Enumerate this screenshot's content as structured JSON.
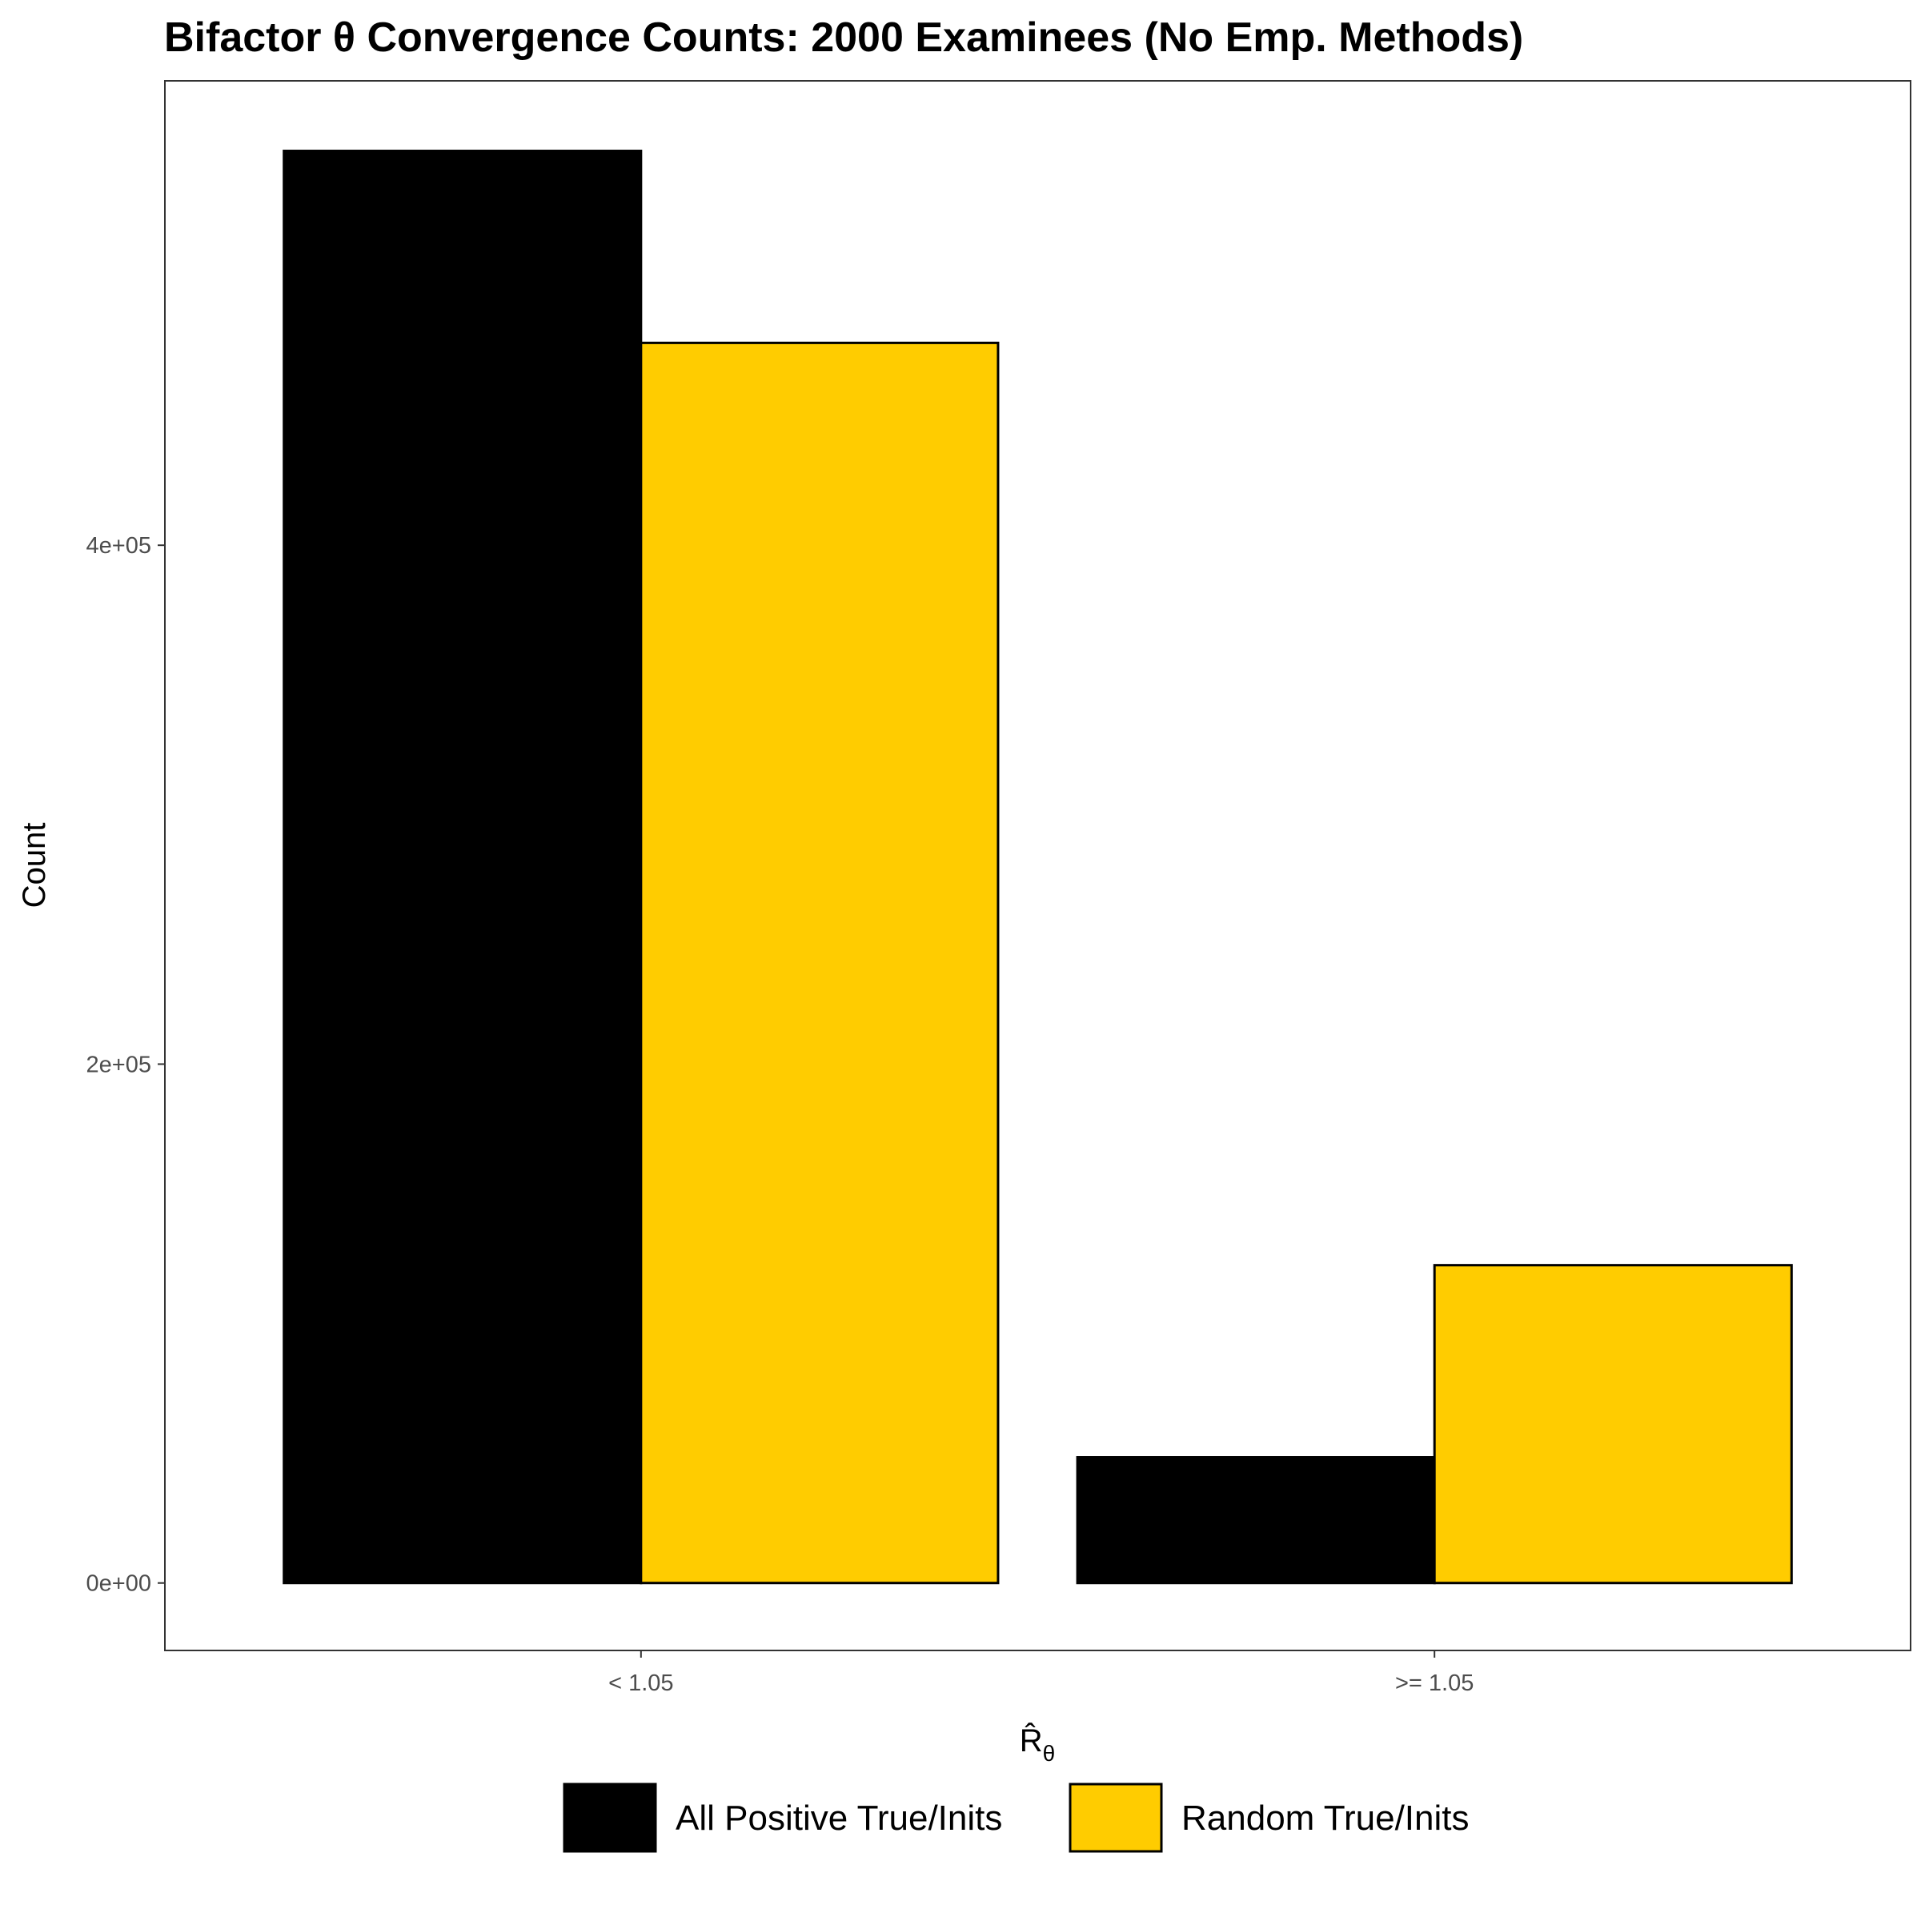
{
  "chart_data": {
    "type": "bar",
    "title": "Bifactor θ Convergence Counts: 2000 Examinees (No Emp. Methods)",
    "xlabel": "R̂",
    "xlabel_subscript": "θ",
    "ylabel": "Count",
    "categories": [
      "< 1.05",
      ">= 1.05"
    ],
    "series": [
      {
        "name": "All Positive True/Inits",
        "color": "#000000",
        "values": [
          552000,
          48500
        ]
      },
      {
        "name": "Random True/Inits",
        "color": "#FFCC00",
        "values": [
          478000,
          122500
        ]
      }
    ],
    "yticks": [
      0,
      200000,
      400000
    ],
    "ytick_labels": [
      "0e+00",
      "2e+05",
      "4e+05"
    ],
    "ylim": [
      -26000,
      579000
    ],
    "grid": false,
    "legend_position": "bottom"
  }
}
